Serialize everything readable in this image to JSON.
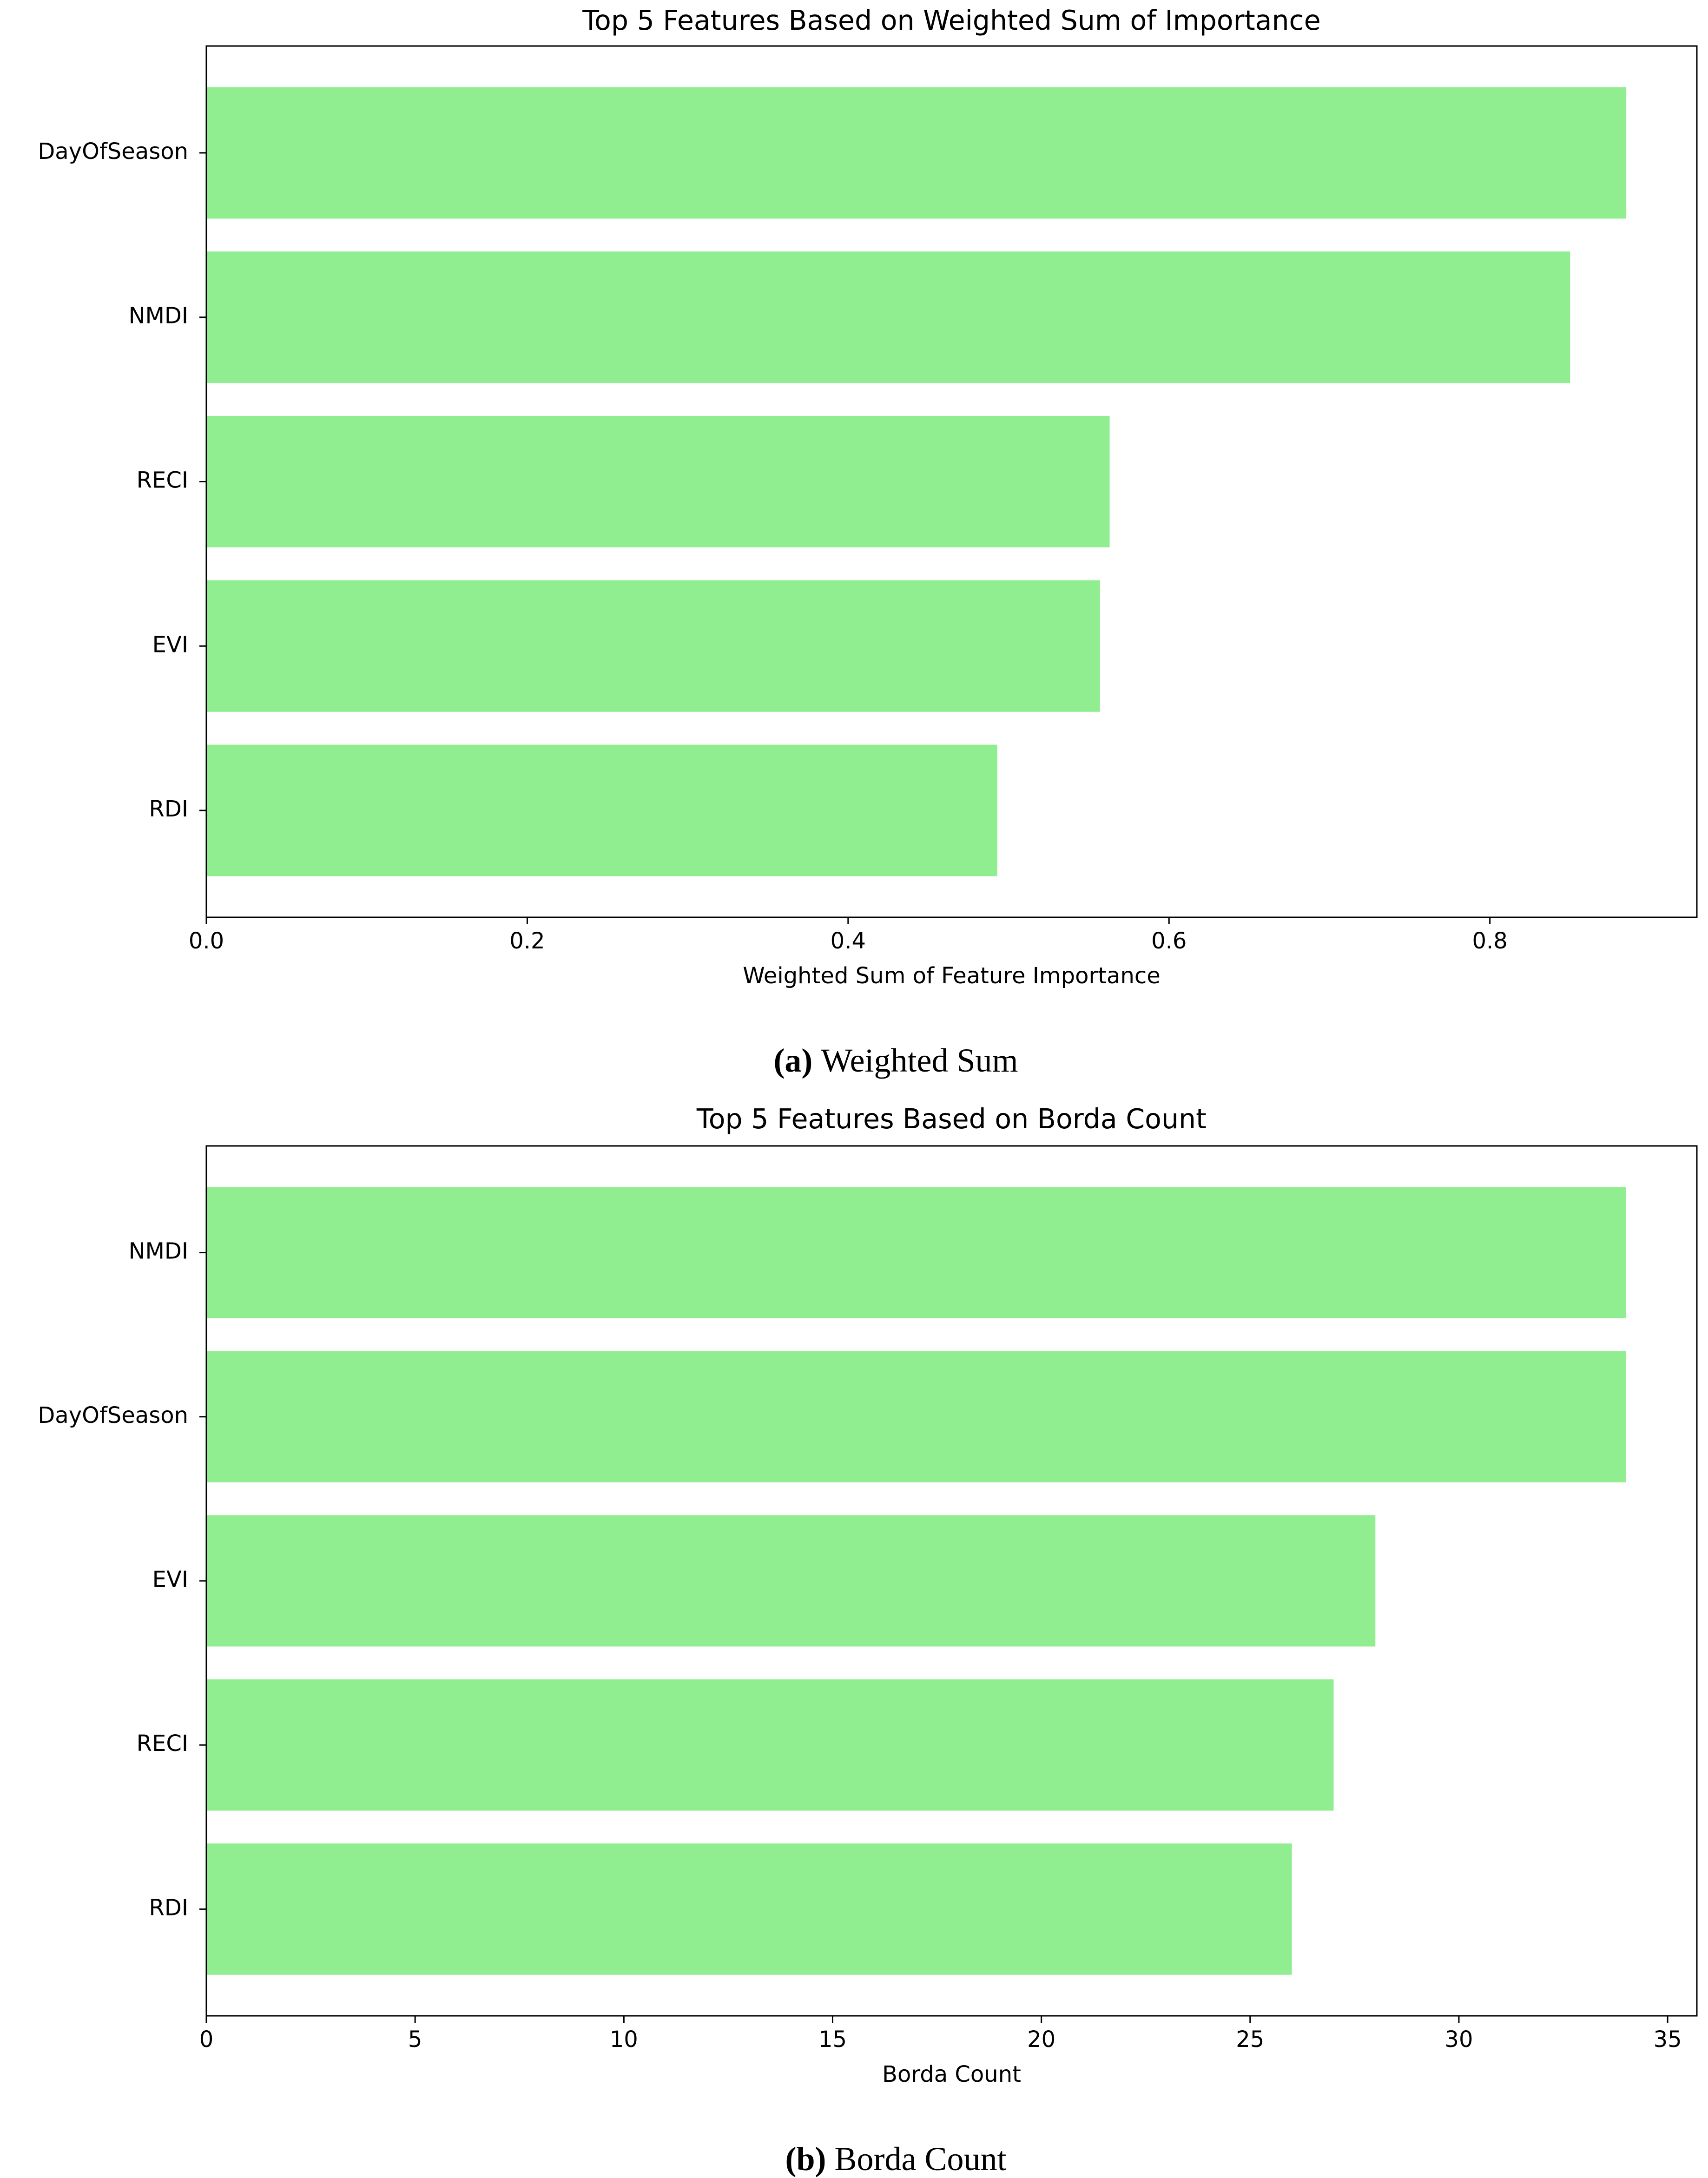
{
  "chart_data": [
    {
      "type": "barh",
      "title": "Top 5 Features Based on Weighted Sum of Importance",
      "categories": [
        "DayOfSeason",
        "NMDI",
        "RECI",
        "EVI",
        "RDI"
      ],
      "values": [
        0.885,
        0.85,
        0.563,
        0.557,
        0.493
      ],
      "color": "#90ee90",
      "xlabel": "Weighted Sum of Feature Importance",
      "xlim": [
        0,
        0.929
      ],
      "xticks": [
        {
          "value": 0,
          "label": "0.0"
        },
        0.2,
        0.4,
        0.6,
        0.8
      ],
      "caption_label": "(a)",
      "caption": "Weighted Sum"
    },
    {
      "type": "barh",
      "title": "Top 5 Features Based on Borda Count",
      "categories": [
        "NMDI",
        "DayOfSeason",
        "EVI",
        "RECI",
        "RDI"
      ],
      "values": [
        34,
        34,
        28,
        27,
        26
      ],
      "color": "#90ee90",
      "xlabel": "Borda Count",
      "xlim": [
        0,
        35.7
      ],
      "xticks": [
        0,
        5,
        10,
        15,
        20,
        25,
        30,
        35
      ],
      "caption_label": "(b)",
      "caption": "Borda Count"
    }
  ]
}
